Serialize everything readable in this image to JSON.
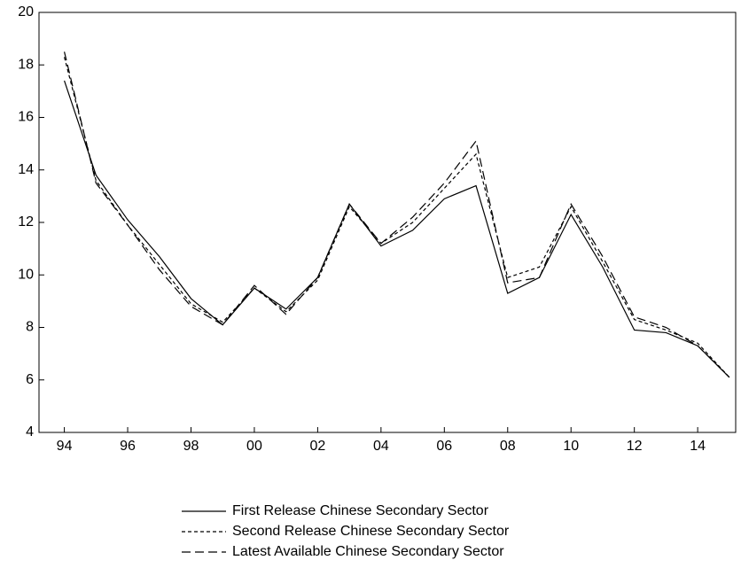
{
  "chart_data": {
    "type": "line",
    "x": [
      1994,
      1995,
      1996,
      1997,
      1998,
      1999,
      2000,
      2001,
      2002,
      2003,
      2004,
      2005,
      2006,
      2007,
      2008,
      2009,
      2010,
      2011,
      2012,
      2013,
      2014,
      2015
    ],
    "series": [
      {
        "name": "First Release Chinese Secondary Sector",
        "color": "#000000",
        "dash": "solid",
        "values": [
          17.4,
          13.8,
          12.1,
          10.7,
          9.1,
          8.1,
          9.5,
          8.7,
          9.9,
          12.7,
          11.1,
          11.7,
          12.9,
          13.4,
          9.3,
          9.9,
          12.3,
          10.3,
          7.9,
          7.8,
          7.3,
          6.1
        ]
      },
      {
        "name": "Second Release Chinese Secondary Sector",
        "color": "#000000",
        "dash": "short",
        "values": [
          18.3,
          13.6,
          11.9,
          10.4,
          8.9,
          8.2,
          9.5,
          8.6,
          9.8,
          12.6,
          11.2,
          12.0,
          13.3,
          14.6,
          9.9,
          10.3,
          12.6,
          10.5,
          8.3,
          7.9,
          7.4,
          6.1
        ]
      },
      {
        "name": "Latest Available Chinese Secondary Sector",
        "color": "#000000",
        "dash": "long",
        "values": [
          18.5,
          13.5,
          11.9,
          10.2,
          8.8,
          8.1,
          9.6,
          8.5,
          9.9,
          12.7,
          11.2,
          12.2,
          13.5,
          15.1,
          9.7,
          9.9,
          12.7,
          10.7,
          8.4,
          8.0,
          7.3,
          6.1
        ]
      }
    ],
    "xlim": [
      1993.2,
      2015.2
    ],
    "xticks": [
      {
        "value": 1994,
        "label": "94"
      },
      {
        "value": 1996,
        "label": "96"
      },
      {
        "value": 1998,
        "label": "98"
      },
      {
        "value": 2000,
        "label": "00"
      },
      {
        "value": 2002,
        "label": "02"
      },
      {
        "value": 2004,
        "label": "04"
      },
      {
        "value": 2006,
        "label": "06"
      },
      {
        "value": 2008,
        "label": "08"
      },
      {
        "value": 2010,
        "label": "10"
      },
      {
        "value": 2012,
        "label": "12"
      },
      {
        "value": 2014,
        "label": "14"
      }
    ],
    "ylim": [
      4,
      20
    ],
    "yticks": [
      4,
      6,
      8,
      10,
      12,
      14,
      16,
      18,
      20
    ],
    "legend": "bottom"
  }
}
